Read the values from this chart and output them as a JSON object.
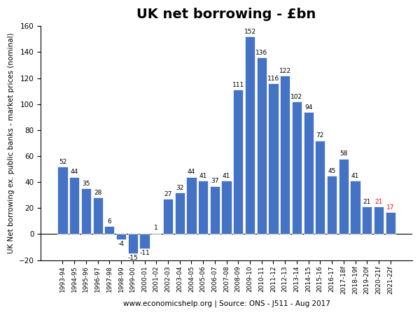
{
  "categories": [
    "1993-94",
    "1994-95",
    "1995-96",
    "1996-97",
    "1997-98",
    "1998-99",
    "1999-00",
    "2000-01",
    "2001-02",
    "2002-03",
    "2003-04",
    "2004-05",
    "2005-06",
    "2006-07",
    "2007-08",
    "2008-09",
    "2009-10",
    "2010-11",
    "2011-12",
    "2012-13",
    "2013-14",
    "2014-15",
    "2015-16",
    "2016-17",
    "2017-18f",
    "2018-19f",
    "2019-20f",
    "2020-21f",
    "2021-22f"
  ],
  "values": [
    52,
    44,
    35,
    28,
    6,
    -4,
    -15,
    -11,
    1,
    27,
    32,
    44,
    41,
    37,
    41,
    111,
    152,
    136,
    116,
    122,
    102,
    94,
    72,
    45,
    58,
    41,
    21,
    21,
    17
  ],
  "bar_color": "#4472C4",
  "red_label_indices": [
    27,
    28
  ],
  "red_color": "#FF0000",
  "black_color": "#000000",
  "title": "UK net borrowing - £bn",
  "ylabel": "UK Net borrowing ex. public banks - market prices (nominal)",
  "xlabel": "www.economicshelp.org | Source: ONS - J511 - Aug 2017",
  "ylim": [
    -20,
    160
  ],
  "yticks": [
    -20,
    0,
    20,
    40,
    60,
    80,
    100,
    120,
    140,
    160
  ],
  "title_fontsize": 14,
  "tick_label_fontsize": 6.5,
  "value_fontsize": 6.5,
  "ylabel_fontsize": 7.5,
  "xlabel_fontsize": 7.5,
  "background_color": "#FFFFFF",
  "figsize": [
    6.0,
    4.5
  ],
  "dpi": 100
}
